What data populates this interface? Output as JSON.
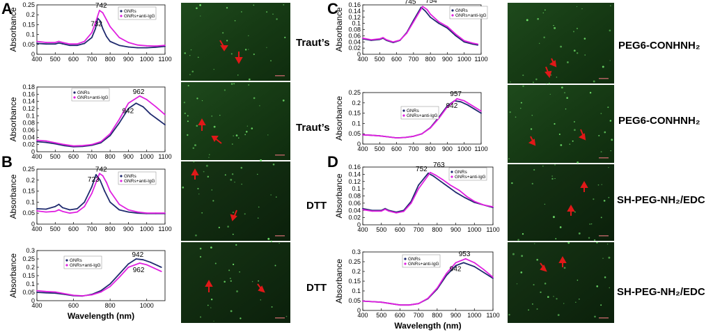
{
  "colors": {
    "gnrs": "#1f2a6e",
    "anti": "#e020e0",
    "micro_bg": "#1b3a18",
    "arrow": "#e01818"
  },
  "panel_letters": [
    "A",
    "B",
    "C",
    "D"
  ],
  "row_labels": [
    "Traut’s",
    "Traut’s",
    "DTT",
    "DTT",
    "PEG6-CONHNH₂",
    "PEG6-CONHNH₂",
    "SH-PEG-NH₂/EDC",
    "SH-PEG-NH₂/EDC"
  ],
  "chart_data": [
    {
      "id": "A1",
      "type": "line",
      "xlabel": "",
      "ylabel": "Absorbance",
      "xlim": [
        400,
        1100
      ],
      "ylim": [
        0,
        0.25
      ],
      "xticks": [
        400,
        500,
        600,
        700,
        800,
        900,
        1000,
        1100
      ],
      "yticks": [
        "0",
        "0.05",
        "0.1",
        "0.15",
        "0.2",
        "0.25"
      ],
      "legend": [
        "GNRs",
        "GNRs+anti-IgG"
      ],
      "legend_position": "top-right",
      "peak_labels": [
        "742",
        "732"
      ],
      "series": [
        {
          "name": "GNRs",
          "x": [
            400,
            450,
            500,
            520,
            540,
            580,
            620,
            660,
            700,
            720,
            732,
            745,
            760,
            780,
            800,
            850,
            900,
            950,
            1000,
            1050,
            1100
          ],
          "y": [
            0.055,
            0.052,
            0.052,
            0.057,
            0.053,
            0.045,
            0.045,
            0.055,
            0.085,
            0.13,
            0.182,
            0.17,
            0.13,
            0.09,
            0.065,
            0.045,
            0.037,
            0.033,
            0.033,
            0.036,
            0.04
          ]
        },
        {
          "name": "GNRs+anti-IgG",
          "x": [
            400,
            450,
            500,
            520,
            540,
            580,
            620,
            660,
            700,
            720,
            742,
            760,
            780,
            800,
            850,
            900,
            950,
            1000,
            1050,
            1100
          ],
          "y": [
            0.065,
            0.06,
            0.06,
            0.065,
            0.06,
            0.052,
            0.052,
            0.065,
            0.11,
            0.16,
            0.222,
            0.21,
            0.175,
            0.14,
            0.085,
            0.06,
            0.047,
            0.043,
            0.042,
            0.045
          ]
        }
      ]
    },
    {
      "id": "A2",
      "type": "line",
      "xlabel": "",
      "ylabel": "Absorbance",
      "xlim": [
        400,
        1100
      ],
      "ylim": [
        0,
        0.18
      ],
      "xticks": [
        400,
        500,
        600,
        700,
        800,
        900,
        1000,
        1100
      ],
      "yticks": [
        "0",
        "0.02",
        "0.04",
        "0.06",
        "0.08",
        "0.1",
        "0.12",
        "0.14",
        "0.16",
        "0.18"
      ],
      "legend": [
        "GNRs",
        "GNRs+anti-IgG"
      ],
      "legend_position": "top-left",
      "peak_labels": [
        "962",
        "942"
      ],
      "series": [
        {
          "name": "GNRs",
          "x": [
            400,
            450,
            500,
            550,
            600,
            650,
            700,
            750,
            800,
            850,
            900,
            942,
            980,
            1020,
            1060,
            1100
          ],
          "y": [
            0.028,
            0.026,
            0.022,
            0.017,
            0.014,
            0.015,
            0.018,
            0.025,
            0.045,
            0.08,
            0.12,
            0.135,
            0.125,
            0.105,
            0.09,
            0.075
          ]
        },
        {
          "name": "GNRs+anti-IgG",
          "x": [
            400,
            450,
            500,
            550,
            600,
            650,
            700,
            750,
            800,
            850,
            900,
            962,
            1000,
            1050,
            1100
          ],
          "y": [
            0.032,
            0.03,
            0.025,
            0.02,
            0.016,
            0.017,
            0.02,
            0.028,
            0.05,
            0.09,
            0.135,
            0.155,
            0.145,
            0.125,
            0.103
          ]
        }
      ]
    },
    {
      "id": "B1",
      "type": "line",
      "xlabel": "",
      "ylabel": "Absorbance",
      "xlim": [
        400,
        1100
      ],
      "ylim": [
        0,
        0.25
      ],
      "xticks": [
        400,
        500,
        600,
        700,
        800,
        900,
        1000,
        1100
      ],
      "yticks": [
        "0",
        "0.05",
        "0.1",
        "0.15",
        "0.2",
        "0.25"
      ],
      "legend": [
        "GNRs",
        "GNRs+anti-IgG"
      ],
      "legend_position": "top-right",
      "peak_labels": [
        "742",
        "723"
      ],
      "series": [
        {
          "name": "GNRs",
          "x": [
            400,
            450,
            500,
            520,
            540,
            580,
            620,
            660,
            700,
            723,
            745,
            770,
            800,
            850,
            900,
            950,
            1000,
            1050,
            1100
          ],
          "y": [
            0.07,
            0.068,
            0.08,
            0.09,
            0.075,
            0.065,
            0.07,
            0.1,
            0.17,
            0.225,
            0.2,
            0.15,
            0.1,
            0.065,
            0.055,
            0.05,
            0.048,
            0.048,
            0.048
          ]
        },
        {
          "name": "GNRs+anti-IgG",
          "x": [
            400,
            450,
            500,
            520,
            540,
            580,
            620,
            660,
            700,
            742,
            760,
            780,
            800,
            850,
            900,
            950,
            1000,
            1050,
            1100
          ],
          "y": [
            0.06,
            0.055,
            0.058,
            0.065,
            0.058,
            0.05,
            0.055,
            0.08,
            0.14,
            0.23,
            0.22,
            0.19,
            0.15,
            0.09,
            0.065,
            0.055,
            0.05,
            0.05,
            0.05
          ]
        }
      ]
    },
    {
      "id": "B2",
      "type": "line",
      "xlabel": "Wavelength (nm)",
      "ylabel": "Absorbance",
      "xlim": [
        400,
        1100
      ],
      "ylim": [
        0,
        0.3
      ],
      "xticks": [
        400,
        600,
        800,
        1000
      ],
      "yticks": [
        "0",
        "0.05",
        "0.1",
        "0.15",
        "0.2",
        "0.25",
        "0.3"
      ],
      "legend": [
        "GNRs",
        "GNRs+anti-IgG"
      ],
      "legend_position": "top-left",
      "peak_labels": [
        "942",
        "962"
      ],
      "series": [
        {
          "name": "GNRs",
          "x": [
            400,
            450,
            500,
            550,
            600,
            650,
            700,
            750,
            800,
            850,
            900,
            942,
            980,
            1020,
            1060,
            1080
          ],
          "y": [
            0.05,
            0.047,
            0.045,
            0.038,
            0.03,
            0.028,
            0.038,
            0.06,
            0.1,
            0.16,
            0.22,
            0.25,
            0.245,
            0.23,
            0.21,
            0.2
          ]
        },
        {
          "name": "GNRs+anti-IgG",
          "x": [
            400,
            450,
            500,
            550,
            600,
            650,
            700,
            750,
            800,
            850,
            900,
            962,
            1000,
            1040,
            1080
          ],
          "y": [
            0.06,
            0.055,
            0.052,
            0.042,
            0.032,
            0.029,
            0.035,
            0.052,
            0.085,
            0.14,
            0.2,
            0.225,
            0.215,
            0.195,
            0.175
          ]
        }
      ]
    },
    {
      "id": "C1",
      "type": "line",
      "xlabel": "",
      "ylabel": "Absorbance",
      "xlim": [
        400,
        1100
      ],
      "ylim": [
        0,
        0.16
      ],
      "xticks": [
        400,
        500,
        600,
        700,
        800,
        900,
        1000,
        1100
      ],
      "yticks": [
        "0",
        "0.02",
        "0.04",
        "0.06",
        "0.08",
        "0.1",
        "0.12",
        "0.14",
        "0.16"
      ],
      "legend": [
        "GNRs",
        "GNRs+anti-IgG"
      ],
      "legend_position": "top-right",
      "peak_labels": [
        "745",
        "754"
      ],
      "series": [
        {
          "name": "GNRs",
          "x": [
            400,
            450,
            500,
            520,
            540,
            580,
            620,
            660,
            700,
            745,
            770,
            800,
            850,
            900,
            950,
            1000,
            1050,
            1080
          ],
          "y": [
            0.05,
            0.045,
            0.048,
            0.052,
            0.045,
            0.038,
            0.045,
            0.07,
            0.11,
            0.152,
            0.14,
            0.12,
            0.1,
            0.085,
            0.06,
            0.04,
            0.033,
            0.03
          ]
        },
        {
          "name": "GNRs+anti-IgG",
          "x": [
            400,
            450,
            500,
            520,
            540,
            580,
            620,
            660,
            700,
            754,
            780,
            800,
            850,
            900,
            950,
            1000,
            1050,
            1080
          ],
          "y": [
            0.052,
            0.047,
            0.05,
            0.054,
            0.047,
            0.04,
            0.046,
            0.068,
            0.105,
            0.155,
            0.145,
            0.13,
            0.105,
            0.09,
            0.065,
            0.044,
            0.036,
            0.033
          ]
        }
      ]
    },
    {
      "id": "C2",
      "type": "line",
      "xlabel": "",
      "ylabel": "Absorbance",
      "xlim": [
        400,
        1100
      ],
      "ylim": [
        0,
        0.25
      ],
      "xticks": [
        400,
        500,
        600,
        700,
        800,
        900,
        1000,
        1100
      ],
      "yticks": [
        "0",
        "0.05",
        "0.1",
        "0.15",
        "0.2",
        "0.25"
      ],
      "legend": [
        "GNRs",
        "GNRs+anti-IgG"
      ],
      "legend_position": "top-left",
      "peak_labels": [
        "957",
        "942"
      ],
      "series": [
        {
          "name": "GNRs",
          "x": [
            400,
            450,
            500,
            550,
            600,
            650,
            700,
            750,
            800,
            850,
            900,
            942,
            980,
            1020,
            1060,
            1100
          ],
          "y": [
            0.045,
            0.043,
            0.04,
            0.035,
            0.03,
            0.032,
            0.038,
            0.05,
            0.08,
            0.13,
            0.185,
            0.21,
            0.205,
            0.19,
            0.17,
            0.15
          ]
        },
        {
          "name": "GNRs+anti-IgG",
          "x": [
            400,
            450,
            500,
            550,
            600,
            650,
            700,
            750,
            800,
            850,
            900,
            957,
            1000,
            1050,
            1100
          ],
          "y": [
            0.045,
            0.043,
            0.04,
            0.035,
            0.03,
            0.032,
            0.038,
            0.05,
            0.078,
            0.125,
            0.18,
            0.22,
            0.21,
            0.185,
            0.16
          ]
        }
      ]
    },
    {
      "id": "D1",
      "type": "line",
      "xlabel": "",
      "ylabel": "Absorbance",
      "xlim": [
        400,
        1100
      ],
      "ylim": [
        0,
        0.16
      ],
      "xticks": [
        400,
        500,
        600,
        700,
        800,
        900,
        1000,
        1100
      ],
      "yticks": [
        "0",
        "0.02",
        "0.04",
        "0.06",
        "0.08",
        "0.1",
        "0.12",
        "0.14",
        "0.16"
      ],
      "legend": [
        "GNRs",
        "GNRs+anti-IgG"
      ],
      "legend_position": "top-right",
      "peak_labels": [
        "752",
        "763"
      ],
      "series": [
        {
          "name": "GNRs",
          "x": [
            400,
            450,
            500,
            520,
            540,
            580,
            620,
            660,
            700,
            752,
            780,
            820,
            860,
            900,
            950,
            1000,
            1050,
            1100
          ],
          "y": [
            0.045,
            0.04,
            0.04,
            0.045,
            0.04,
            0.035,
            0.04,
            0.065,
            0.11,
            0.143,
            0.135,
            0.12,
            0.105,
            0.09,
            0.075,
            0.062,
            0.055,
            0.048
          ]
        },
        {
          "name": "GNRs+anti-IgG",
          "x": [
            400,
            450,
            500,
            520,
            540,
            580,
            620,
            660,
            700,
            763,
            790,
            830,
            870,
            920,
            960,
            1000,
            1050,
            1100
          ],
          "y": [
            0.042,
            0.038,
            0.038,
            0.043,
            0.038,
            0.033,
            0.037,
            0.06,
            0.1,
            0.145,
            0.138,
            0.125,
            0.11,
            0.095,
            0.078,
            0.065,
            0.055,
            0.05
          ]
        }
      ]
    },
    {
      "id": "D2",
      "type": "line",
      "xlabel": "Wavelength (nm)",
      "ylabel": "Absorbance",
      "xlim": [
        400,
        1100
      ],
      "ylim": [
        0,
        0.3
      ],
      "xticks": [
        400,
        500,
        600,
        700,
        800,
        900,
        1000,
        1100
      ],
      "yticks": [
        "0",
        "0.05",
        "0.1",
        "0.15",
        "0.2",
        "0.25",
        "0.3"
      ],
      "legend": [
        "GNRs",
        "GNRs+anti-IgG"
      ],
      "legend_position": "top-left",
      "peak_labels": [
        "953",
        "942"
      ],
      "series": [
        {
          "name": "GNRs",
          "x": [
            400,
            450,
            500,
            550,
            600,
            650,
            700,
            750,
            800,
            850,
            900,
            942,
            1000,
            1050,
            1100
          ],
          "y": [
            0.048,
            0.045,
            0.042,
            0.035,
            0.028,
            0.028,
            0.035,
            0.06,
            0.11,
            0.18,
            0.23,
            0.245,
            0.225,
            0.195,
            0.165
          ]
        },
        {
          "name": "GNRs+anti-IgG",
          "x": [
            400,
            450,
            500,
            550,
            600,
            650,
            700,
            750,
            800,
            850,
            900,
            953,
            1000,
            1050,
            1100
          ],
          "y": [
            0.048,
            0.045,
            0.042,
            0.035,
            0.028,
            0.028,
            0.035,
            0.062,
            0.115,
            0.19,
            0.245,
            0.265,
            0.245,
            0.21,
            0.17
          ]
        }
      ]
    }
  ]
}
